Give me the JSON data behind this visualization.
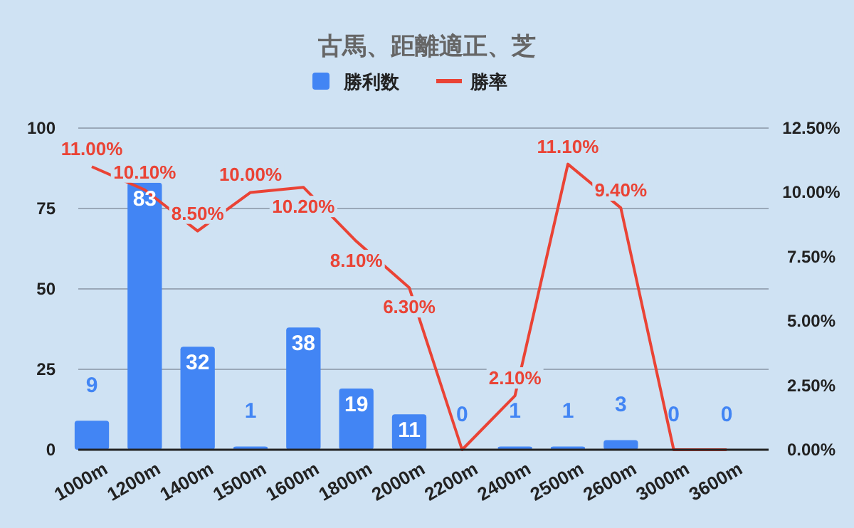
{
  "chart_data": {
    "type": "bar",
    "title": "古馬、距離適正、芝",
    "categories": [
      "1000m",
      "1200m",
      "1400m",
      "1500m",
      "1600m",
      "1800m",
      "2000m",
      "2200m",
      "2400m",
      "2500m",
      "2600m",
      "3000m",
      "3600m"
    ],
    "series": [
      {
        "name": "勝利数",
        "color": "#4285f4",
        "values": [
          9,
          83,
          32,
          1,
          38,
          19,
          11,
          0,
          1,
          1,
          3,
          0,
          0
        ],
        "value_labels": [
          "9",
          "83",
          "32",
          "1",
          "38",
          "19",
          "11",
          "0",
          "1",
          "1",
          "3",
          "0",
          "0"
        ]
      },
      {
        "name": "勝率",
        "type": "line",
        "axis": "y2",
        "color": "#ea4335",
        "values": [
          11.0,
          10.1,
          8.5,
          10.0,
          10.2,
          8.1,
          6.3,
          0,
          2.1,
          11.1,
          9.4,
          0,
          0
        ],
        "value_labels": [
          "11.00%",
          "10.10%",
          "8.50%",
          "10.00%",
          "10.20%",
          "8.10%",
          "6.30%",
          null,
          "2.10%",
          "11.10%",
          "9.40%",
          null,
          null
        ]
      }
    ],
    "ylim": [
      0,
      100
    ],
    "yticks": [
      0,
      25,
      50,
      75,
      100
    ],
    "y2lim": [
      0,
      12.5
    ],
    "y2ticks": [
      {
        "value": 0,
        "label": "0.00%"
      },
      {
        "value": 2.5,
        "label": "2.50%"
      },
      {
        "value": 5,
        "label": "5.00%"
      },
      {
        "value": 7.5,
        "label": "7.50%"
      },
      {
        "value": 10,
        "label": "10.00%"
      },
      {
        "value": 12.5,
        "label": "12.50%"
      }
    ],
    "grid": "y",
    "legend": "top"
  }
}
